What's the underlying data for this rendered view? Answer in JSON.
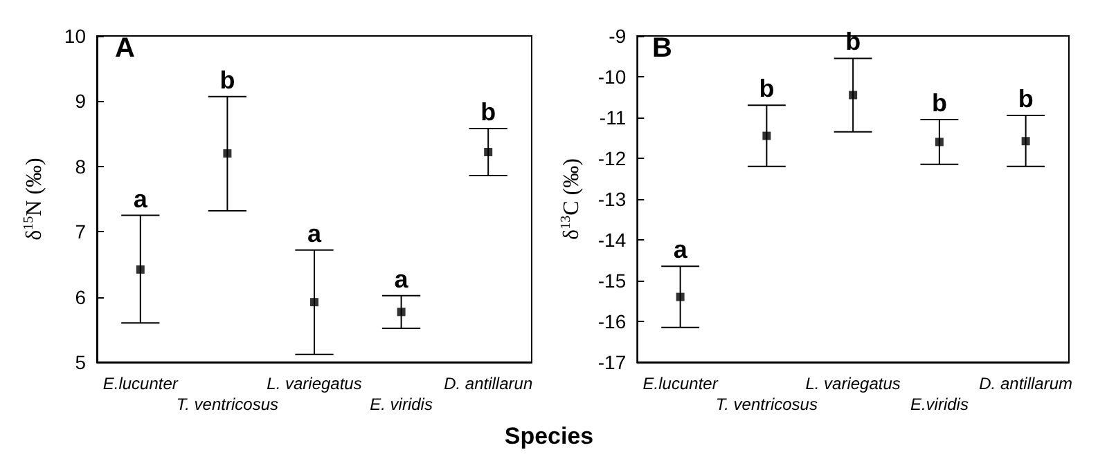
{
  "chart_data": [
    {
      "type": "scatter",
      "title": "A",
      "xlabel": "Species",
      "ylabel": "δ$^{15}$N (‰)",
      "categories": [
        "E.lucunter",
        "T. ventricosus",
        "L. variegatus",
        "E. viridis",
        "D. antillarun"
      ],
      "series": [
        {
          "color": "#000000",
          "values": [
            6.42,
            8.2,
            5.92,
            5.77,
            8.22
          ],
          "errors": [
            [
              5.6,
              7.25
            ],
            [
              7.32,
              9.07
            ],
            [
              5.12,
              6.72
            ],
            [
              5.52,
              6.02
            ],
            [
              7.86,
              8.58
            ]
          ]
        }
      ],
      "ylim": [
        5,
        10
      ],
      "yticks": [
        5,
        6,
        7,
        8,
        9,
        10
      ],
      "marker": "square",
      "grid": false,
      "annotations": [
        {
          "text": "a",
          "x": "E.lucunter",
          "y": 7.25
        },
        {
          "text": "b",
          "x": "T. ventricosus",
          "y": 9.07
        },
        {
          "text": "a",
          "x": "L. variegatus",
          "y": 6.72
        },
        {
          "text": "a",
          "x": "E. viridis",
          "y": 6.02
        },
        {
          "text": "b",
          "x": "D. antillarun",
          "y": 8.58
        }
      ]
    },
    {
      "type": "scatter",
      "title": "B",
      "ylabel": "δ$^{13}$C (‰)",
      "categories": [
        "E.lucunter",
        "T. ventricosus",
        "L. variegatus",
        "E.viridis",
        "D. antillarum"
      ],
      "series": [
        {
          "color": "#000000",
          "values": [
            -15.4,
            -11.45,
            -10.45,
            -11.6,
            -11.58
          ],
          "errors": [
            [
              -16.15,
              -14.65
            ],
            [
              -12.2,
              -10.7
            ],
            [
              -11.35,
              -9.55
            ],
            [
              -12.15,
              -11.05
            ],
            [
              -12.2,
              -10.95
            ]
          ]
        }
      ],
      "ylim": [
        -17,
        -9
      ],
      "yticks": [
        -17,
        -16,
        -15,
        -14,
        -13,
        -12,
        -11,
        -10,
        -9
      ],
      "marker": "square",
      "grid": false,
      "annotations": [
        {
          "text": "a",
          "x": "E.lucunter",
          "y": -14.65
        },
        {
          "text": "b",
          "x": "T. ventricosus",
          "y": -10.7
        },
        {
          "text": "b",
          "x": "L. variegatus",
          "y": -9.55
        },
        {
          "text": "b",
          "x": "E.viridis",
          "y": -11.05
        },
        {
          "text": "b",
          "x": "D. antillarum",
          "y": -10.95
        }
      ]
    }
  ]
}
